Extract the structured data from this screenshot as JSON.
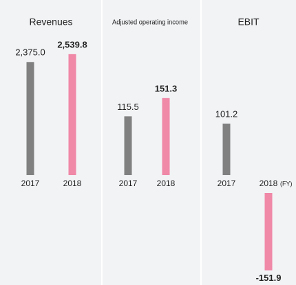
{
  "chart_data": [
    {
      "type": "bar",
      "title": "Revenues",
      "categories": [
        "2017",
        "2018"
      ],
      "values": [
        2375.0,
        2539.8
      ],
      "value_labels": [
        "2,375.0",
        "2,539.8"
      ],
      "colors": [
        "#808080",
        "#f088a8"
      ],
      "ylim": [
        0,
        3100
      ]
    },
    {
      "type": "bar",
      "title": "Adjusted operating income",
      "categories": [
        "2017",
        "2018"
      ],
      "values": [
        115.5,
        151.3
      ],
      "value_labels": [
        "115.5",
        "151.3"
      ],
      "colors": [
        "#808080",
        "#f088a8"
      ],
      "ylim": [
        0,
        290
      ]
    },
    {
      "type": "bar",
      "title": "EBIT",
      "categories": [
        "2017",
        "2018"
      ],
      "values": [
        101.2,
        -151.9
      ],
      "value_labels": [
        "101.2",
        "-151.9"
      ],
      "colors": [
        "#808080",
        "#f088a8"
      ],
      "ylim": [
        -190,
        290
      ],
      "annotation": "(FY)"
    }
  ]
}
